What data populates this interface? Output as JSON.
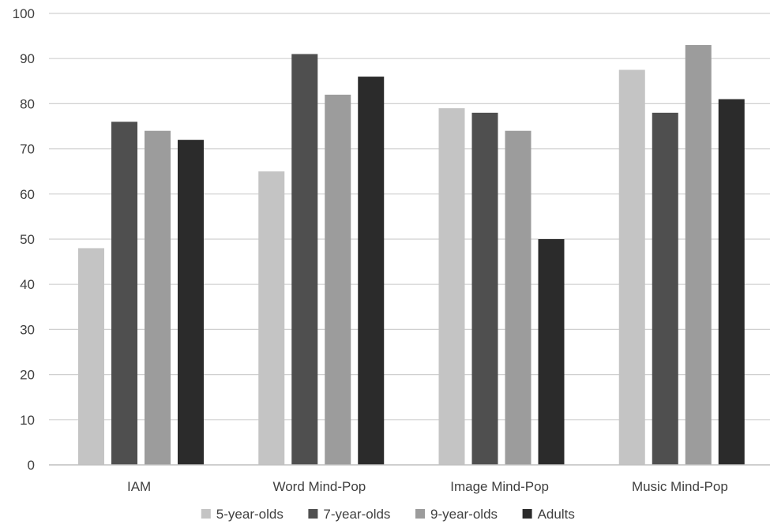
{
  "chart_data": {
    "type": "bar",
    "categories": [
      "IAM",
      "Word Mind-Pop",
      "Image Mind-Pop",
      "Music Mind-Pop"
    ],
    "series": [
      {
        "name": "5-year-olds",
        "values": [
          48,
          65,
          79,
          87.5
        ],
        "color": "#c4c4c4"
      },
      {
        "name": "7-year-olds",
        "values": [
          76,
          91,
          78,
          78
        ],
        "color": "#4f4f4f"
      },
      {
        "name": "9-year-olds",
        "values": [
          74,
          82,
          74,
          93
        ],
        "color": "#9c9c9c"
      },
      {
        "name": "Adults",
        "values": [
          72,
          86,
          50,
          81
        ],
        "color": "#2b2b2b"
      }
    ],
    "ylim": [
      0,
      100
    ],
    "yticks": [
      0,
      10,
      20,
      30,
      40,
      50,
      60,
      70,
      80,
      90,
      100
    ],
    "grid": true,
    "legend_position": "bottom",
    "gridline_color": "#d0d0d0",
    "axis_color": "#bfbfbf"
  }
}
